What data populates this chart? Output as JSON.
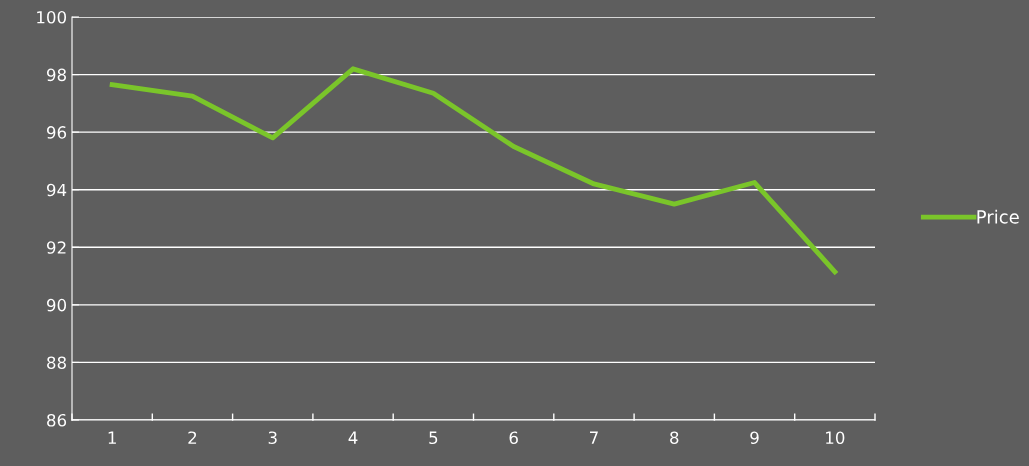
{
  "chart_data": {
    "type": "line",
    "categories": [
      "1",
      "2",
      "3",
      "4",
      "5",
      "6",
      "7",
      "8",
      "9",
      "10"
    ],
    "series": [
      {
        "name": "Price",
        "color": "#7ac52a",
        "values": [
          97.65,
          97.25,
          95.8,
          98.2,
          97.35,
          95.5,
          94.2,
          93.5,
          94.25,
          91.15
        ]
      }
    ],
    "ylim": [
      86,
      100
    ],
    "yticks": [
      86,
      88,
      90,
      92,
      94,
      96,
      98,
      100
    ],
    "grid": "y",
    "legend": "right",
    "marker": "none",
    "line_style": "solid"
  }
}
